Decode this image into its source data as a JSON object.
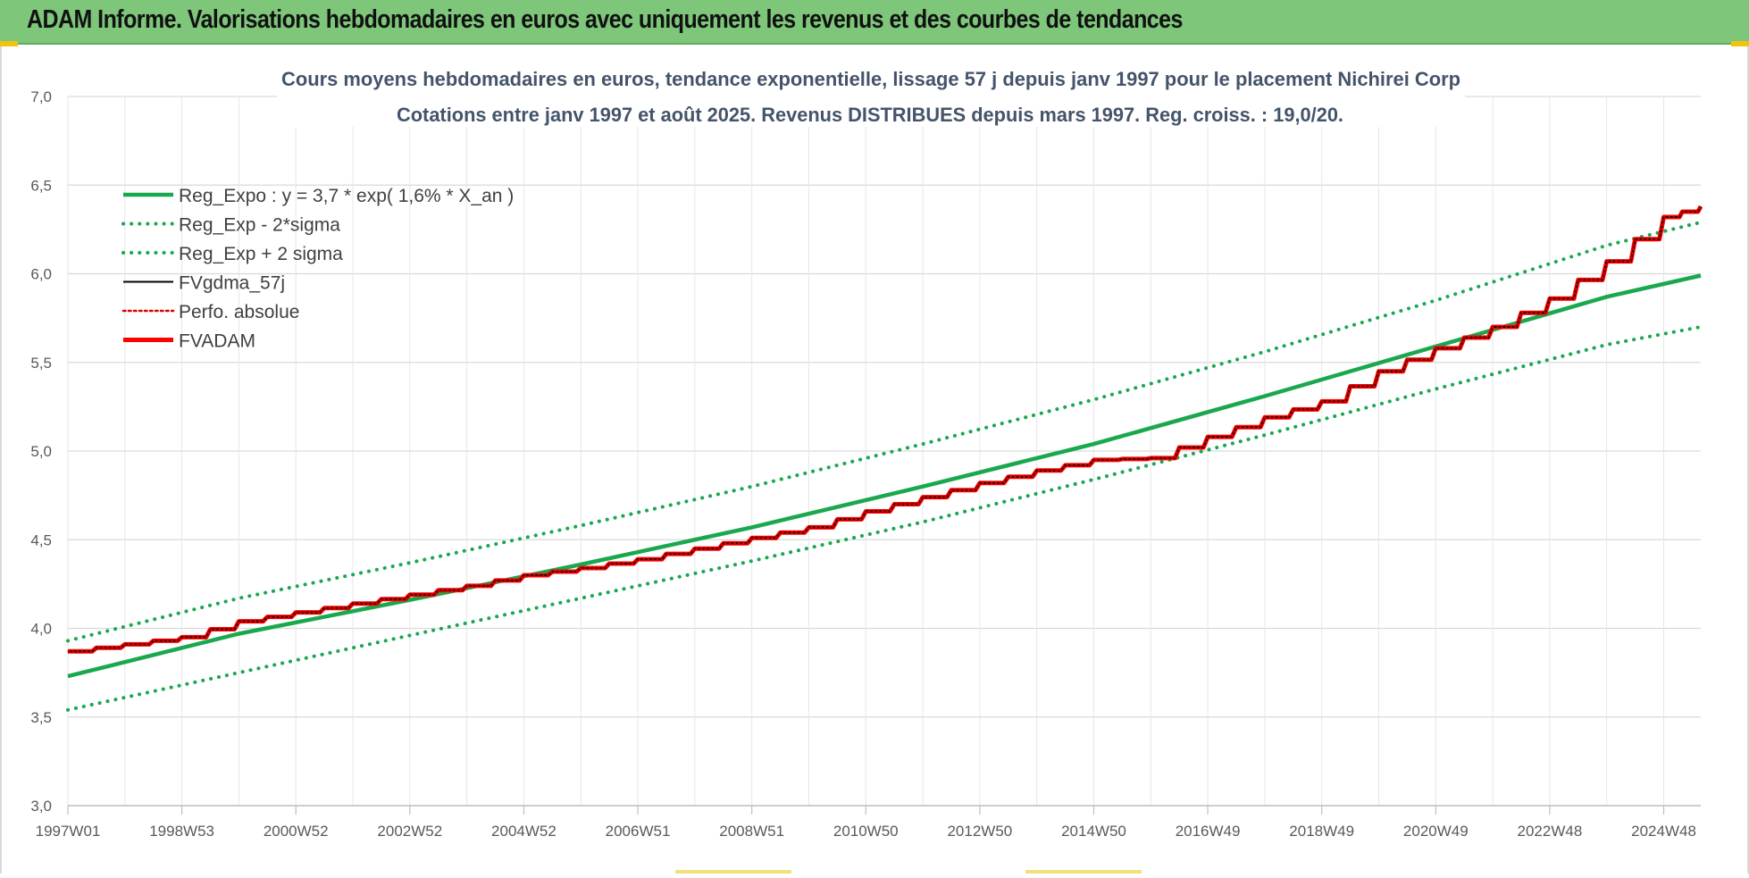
{
  "header": {
    "title": "ADAM Informe. Valorisations hebdomadaires en euros avec uniquement les revenus et des courbes de tendances"
  },
  "colors": {
    "header_bg": "#7dc67a",
    "reg_green": "#1aa84f",
    "sigma_green": "#1aa84f",
    "fvgdma": "#000000",
    "perfo": "#e00000",
    "fvadam": "#ff0000",
    "grid": "#d9d9d9",
    "axis_text": "#595959",
    "title_text": "#44546a"
  },
  "chart_data": {
    "type": "line",
    "title": "Cours moyens hebdomadaires en euros, tendance exponentielle, lissage 57 j depuis janv 1997 pour le placement Nichirei Corp",
    "subtitle": "Cotations entre janv 1997 et août 2025.  Revenus DISTRIBUES depuis mars 1997. Reg. croiss. : 19,0/20.",
    "xlabel": "",
    "ylabel": "",
    "ylim": [
      3.0,
      7.0
    ],
    "yticks": [
      "3,0",
      "3,5",
      "4,0",
      "4,5",
      "5,0",
      "5,5",
      "6,0",
      "6,5",
      "7,0"
    ],
    "xlim": [
      1997.0,
      2025.65
    ],
    "x_tick_labels": [
      "1997W01",
      "1998W53",
      "2000W52",
      "2002W52",
      "2004W52",
      "2006W51",
      "2008W51",
      "2010W50",
      "2012W50",
      "2014W50",
      "2016W49",
      "2018W49",
      "2020W49",
      "2022W48",
      "2024W48"
    ],
    "grid": true,
    "legend_position": "top-left",
    "series": [
      {
        "name": "Reg_Expo : y = 3,7 * exp( 1,6% *  X_an )",
        "style": "solid-thick",
        "color": "#1aa84f",
        "x": [
          1997.0,
          2000.0,
          2003.0,
          2006.0,
          2009.0,
          2012.0,
          2015.0,
          2018.0,
          2021.0,
          2024.0,
          2025.65
        ],
        "y": [
          3.73,
          3.97,
          4.16,
          4.36,
          4.57,
          4.8,
          5.04,
          5.31,
          5.59,
          5.87,
          5.99
        ]
      },
      {
        "name": "Reg_Exp - 2*sigma",
        "style": "dotted",
        "color": "#1aa84f",
        "x": [
          1997.0,
          2000.0,
          2003.0,
          2006.0,
          2009.0,
          2012.0,
          2015.0,
          2018.0,
          2021.0,
          2024.0,
          2025.65
        ],
        "y": [
          3.54,
          3.75,
          3.96,
          4.17,
          4.38,
          4.6,
          4.84,
          5.09,
          5.35,
          5.6,
          5.7
        ]
      },
      {
        "name": "Reg_Exp + 2 sigma",
        "style": "dotted",
        "color": "#1aa84f",
        "x": [
          1997.0,
          2000.0,
          2003.0,
          2006.0,
          2009.0,
          2012.0,
          2015.0,
          2018.0,
          2021.0,
          2024.0,
          2025.65
        ],
        "y": [
          3.93,
          4.17,
          4.37,
          4.58,
          4.8,
          5.04,
          5.29,
          5.56,
          5.85,
          6.16,
          6.29
        ]
      },
      {
        "name": "FVgdma_57j",
        "style": "solid-thin",
        "color": "#000000",
        "x": [
          1997.0,
          1998.0,
          1999.0,
          2000.0,
          2001.0,
          2002.0,
          2003.0,
          2004.0,
          2005.0,
          2006.0,
          2007.0,
          2008.0,
          2009.0,
          2010.0,
          2011.0,
          2012.0,
          2013.0,
          2014.0,
          2015.0,
          2016.0,
          2017.0,
          2018.0,
          2019.0,
          2020.0,
          2021.0,
          2022.0,
          2023.0,
          2024.0,
          2025.0,
          2025.65
        ],
        "y": [
          3.87,
          3.91,
          3.95,
          4.04,
          4.09,
          4.14,
          4.19,
          4.24,
          4.3,
          4.34,
          4.39,
          4.45,
          4.51,
          4.57,
          4.66,
          4.74,
          4.82,
          4.89,
          4.95,
          4.96,
          5.08,
          5.19,
          5.28,
          5.45,
          5.58,
          5.7,
          5.86,
          6.07,
          6.32,
          6.38
        ]
      },
      {
        "name": "Perfo. absolue",
        "style": "dotted",
        "color": "#e00000",
        "x": [
          1997.0,
          1998.0,
          1999.0,
          2000.0,
          2001.0,
          2002.0,
          2003.0,
          2004.0,
          2005.0,
          2006.0,
          2007.0,
          2008.0,
          2009.0,
          2010.0,
          2011.0,
          2012.0,
          2013.0,
          2014.0,
          2015.0,
          2016.0,
          2017.0,
          2018.0,
          2019.0,
          2020.0,
          2021.0,
          2022.0,
          2023.0,
          2024.0,
          2025.0,
          2025.65
        ],
        "y": [
          3.87,
          3.91,
          3.95,
          4.04,
          4.09,
          4.14,
          4.19,
          4.24,
          4.3,
          4.34,
          4.39,
          4.45,
          4.51,
          4.57,
          4.66,
          4.74,
          4.82,
          4.89,
          4.95,
          4.96,
          5.08,
          5.19,
          5.28,
          5.45,
          5.58,
          5.7,
          5.86,
          6.07,
          6.32,
          6.38
        ]
      },
      {
        "name": "FVADAM",
        "style": "step-thick",
        "color": "#ff0000",
        "x": [
          1997.0,
          1998.0,
          1999.0,
          2000.0,
          2001.0,
          2002.0,
          2003.0,
          2004.0,
          2005.0,
          2006.0,
          2007.0,
          2008.0,
          2009.0,
          2010.0,
          2011.0,
          2012.0,
          2013.0,
          2014.0,
          2015.0,
          2016.0,
          2017.0,
          2018.0,
          2019.0,
          2020.0,
          2021.0,
          2022.0,
          2023.0,
          2024.0,
          2025.0,
          2025.65
        ],
        "y": [
          3.87,
          3.91,
          3.95,
          4.04,
          4.09,
          4.14,
          4.19,
          4.24,
          4.3,
          4.34,
          4.39,
          4.45,
          4.51,
          4.57,
          4.66,
          4.74,
          4.82,
          4.89,
          4.95,
          4.96,
          5.08,
          5.19,
          5.28,
          5.45,
          5.58,
          5.7,
          5.86,
          6.07,
          6.32,
          6.38
        ]
      }
    ]
  }
}
